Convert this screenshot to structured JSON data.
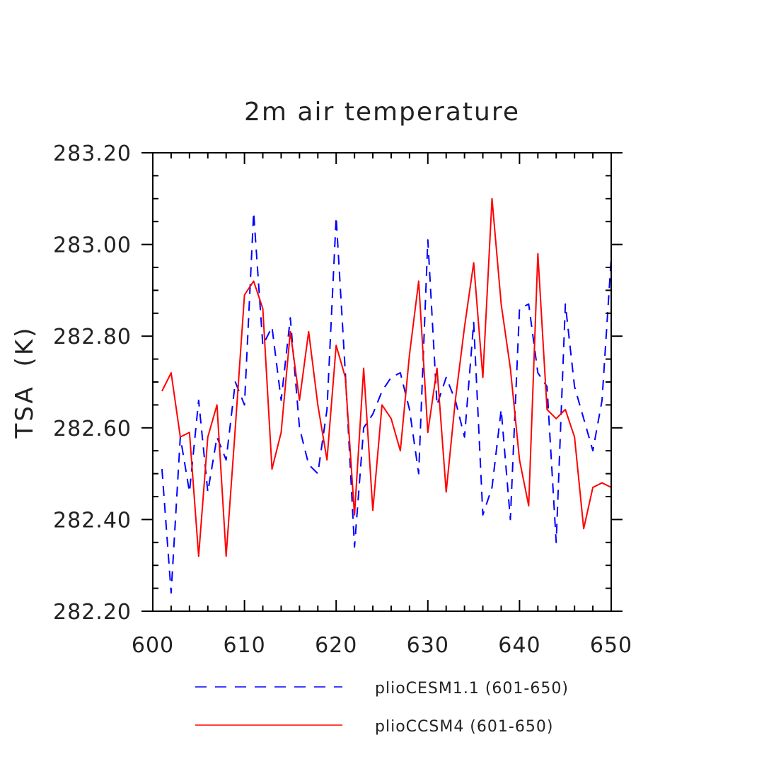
{
  "chart_data": {
    "type": "line",
    "title": "2m air temperature",
    "xlabel": "",
    "ylabel": "TSA (K)",
    "xlim": [
      600,
      650
    ],
    "ylim": [
      282.2,
      283.2
    ],
    "x_ticks": [
      600,
      610,
      620,
      630,
      640,
      650
    ],
    "x_tick_labels": [
      "600",
      "610",
      "620",
      "630",
      "640",
      "650"
    ],
    "y_ticks": [
      282.2,
      282.4,
      282.6,
      282.8,
      283.0,
      283.2
    ],
    "y_tick_labels": [
      "282.20",
      "282.40",
      "282.60",
      "282.80",
      "283.00",
      "283.20"
    ],
    "grid": false,
    "legend_position": "bottom",
    "x": [
      601,
      602,
      603,
      604,
      605,
      606,
      607,
      608,
      609,
      610,
      611,
      612,
      613,
      614,
      615,
      616,
      617,
      618,
      619,
      620,
      621,
      622,
      623,
      624,
      625,
      626,
      627,
      628,
      629,
      630,
      631,
      632,
      633,
      634,
      635,
      636,
      637,
      638,
      639,
      640,
      641,
      642,
      643,
      644,
      645,
      646,
      647,
      648,
      649,
      650
    ],
    "series": [
      {
        "name": "plioCESM1.1 (601-650)",
        "color": "#0000ff",
        "style": "dashed",
        "values": [
          282.51,
          282.24,
          282.58,
          282.46,
          282.66,
          282.46,
          282.58,
          282.53,
          282.7,
          282.65,
          283.07,
          282.78,
          282.82,
          282.66,
          282.84,
          282.6,
          282.52,
          282.5,
          282.64,
          283.06,
          282.72,
          282.34,
          282.6,
          282.63,
          282.68,
          282.71,
          282.72,
          282.64,
          282.5,
          283.01,
          282.65,
          282.71,
          282.66,
          282.58,
          282.83,
          282.41,
          282.47,
          282.64,
          282.4,
          282.86,
          282.87,
          282.72,
          282.69,
          282.35,
          282.87,
          282.69,
          282.62,
          282.55,
          282.66,
          282.97
        ]
      },
      {
        "name": "plioCCSM4 (601-650)",
        "color": "#ff0000",
        "style": "solid",
        "values": [
          282.68,
          282.72,
          282.58,
          282.59,
          282.32,
          282.58,
          282.65,
          282.32,
          282.6,
          282.89,
          282.92,
          282.86,
          282.51,
          282.59,
          282.81,
          282.66,
          282.81,
          282.65,
          282.53,
          282.78,
          282.71,
          282.41,
          282.73,
          282.42,
          282.65,
          282.62,
          282.55,
          282.76,
          282.92,
          282.59,
          282.73,
          282.46,
          282.66,
          282.82,
          282.96,
          282.71,
          283.1,
          282.87,
          282.73,
          282.53,
          282.43,
          282.98,
          282.64,
          282.62,
          282.64,
          282.58,
          282.38,
          282.47,
          282.48,
          282.47
        ]
      }
    ]
  }
}
